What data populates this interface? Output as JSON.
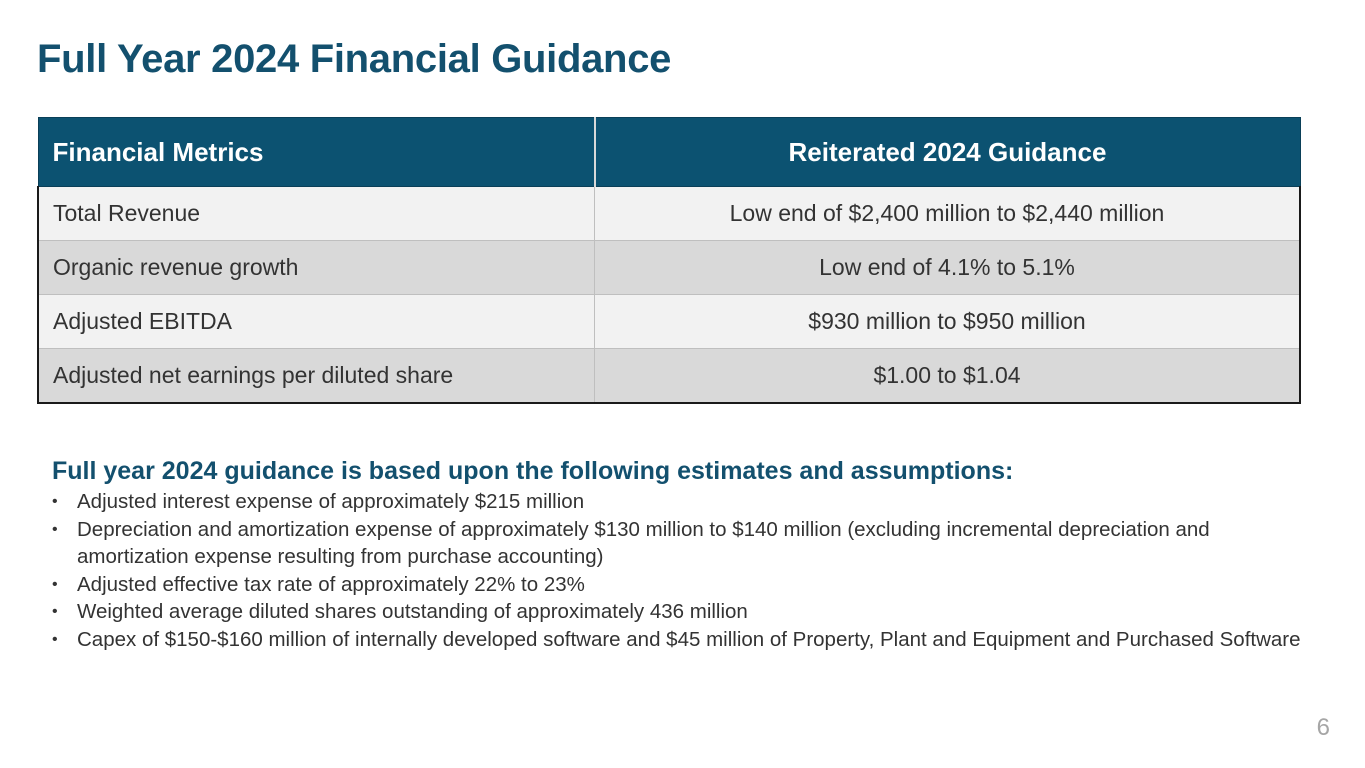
{
  "slide": {
    "title": "Full Year 2024 Financial Guidance",
    "page_number": "6"
  },
  "table": {
    "headers": [
      "Financial Metrics",
      "Reiterated 2024 Guidance"
    ],
    "rows": [
      [
        "Total Revenue",
        "Low end of $2,400 million to $2,440 million"
      ],
      [
        "Organic revenue growth",
        "Low end of 4.1% to 5.1%"
      ],
      [
        "Adjusted EBITDA",
        "$930 million to $950 million"
      ],
      [
        "Adjusted net earnings per diluted share",
        "$1.00 to $1.04"
      ]
    ]
  },
  "assumptions": {
    "heading": "Full year 2024 guidance is based upon the following estimates and assumptions:",
    "bullet_glyph": "•",
    "items": [
      "Adjusted interest expense of approximately $215 million",
      "Depreciation and amortization expense of approximately $130 million to $140 million (excluding incremental depreciation and amortization expense resulting from purchase accounting)",
      "Adjusted effective tax rate of approximately 22% to 23%",
      "Weighted average diluted shares outstanding of approximately 436 million",
      "Capex of $150-$160 million of internally developed software and $45 million of Property, Plant and Equipment and Purchased Software"
    ]
  },
  "colors": {
    "brand_navy": "#13506e",
    "header_fill": "#0c5271",
    "row_light": "#f2f2f2",
    "row_dark": "#d9d9d9"
  }
}
